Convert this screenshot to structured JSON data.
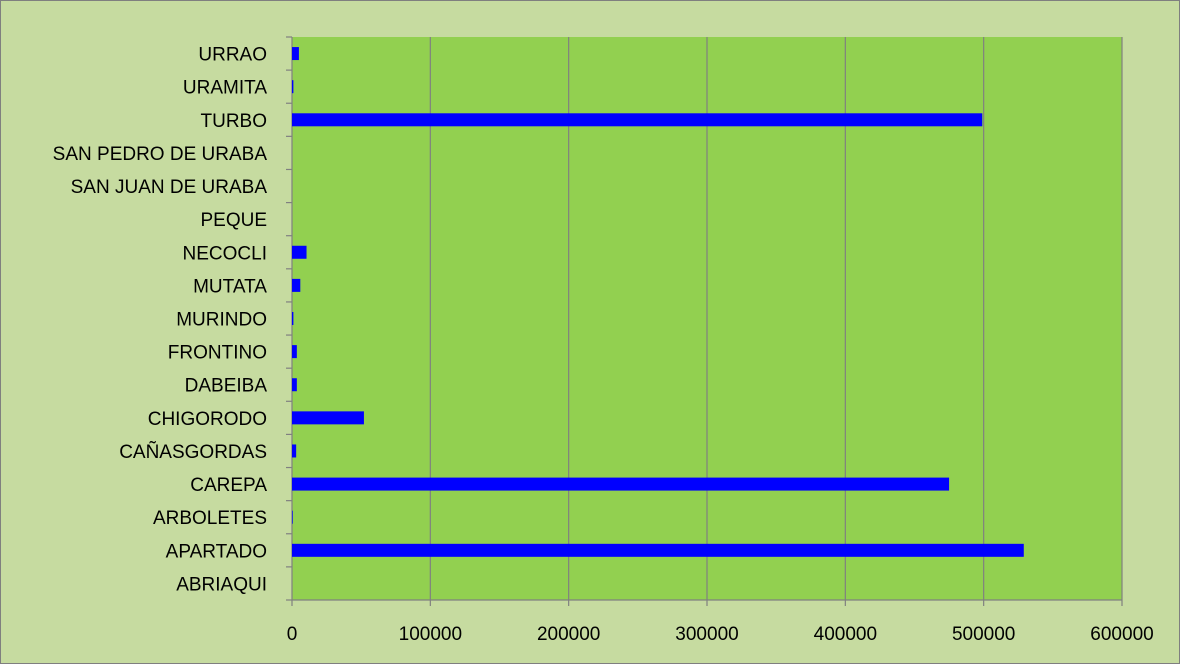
{
  "chart_data": {
    "type": "bar",
    "orientation": "horizontal",
    "title": "",
    "xlabel": "",
    "ylabel": "",
    "categories": [
      "ABRIAQUI",
      "APARTADO",
      "ARBOLETES",
      "CAREPA",
      "CAÑASGORDAS",
      "CHIGORODO",
      "DABEIBA",
      "FRONTINO",
      "MURINDO",
      "MUTATA",
      "NECOCLI",
      "PEQUE",
      "SAN JUAN DE URABA",
      "SAN PEDRO DE URABA",
      "TURBO",
      "URAMITA",
      "URRAO"
    ],
    "values": [
      0,
      529000,
      500,
      475000,
      3000,
      52000,
      3500,
      3500,
      1000,
      6000,
      10500,
      0,
      0,
      0,
      499000,
      1000,
      5000
    ],
    "xlim": [
      0,
      600000
    ],
    "xticks": [
      0,
      100000,
      200000,
      300000,
      400000,
      500000,
      600000
    ],
    "xtick_labels": [
      "0",
      "100000",
      "200000",
      "300000",
      "400000",
      "500000",
      "600000"
    ],
    "grid": "vertical",
    "legend": "none",
    "colors": {
      "background": "#c6dba0",
      "plot_area": "#92d050",
      "bar": "#0000ff",
      "gridline": "#808080",
      "border": "#7f7f7f"
    }
  }
}
